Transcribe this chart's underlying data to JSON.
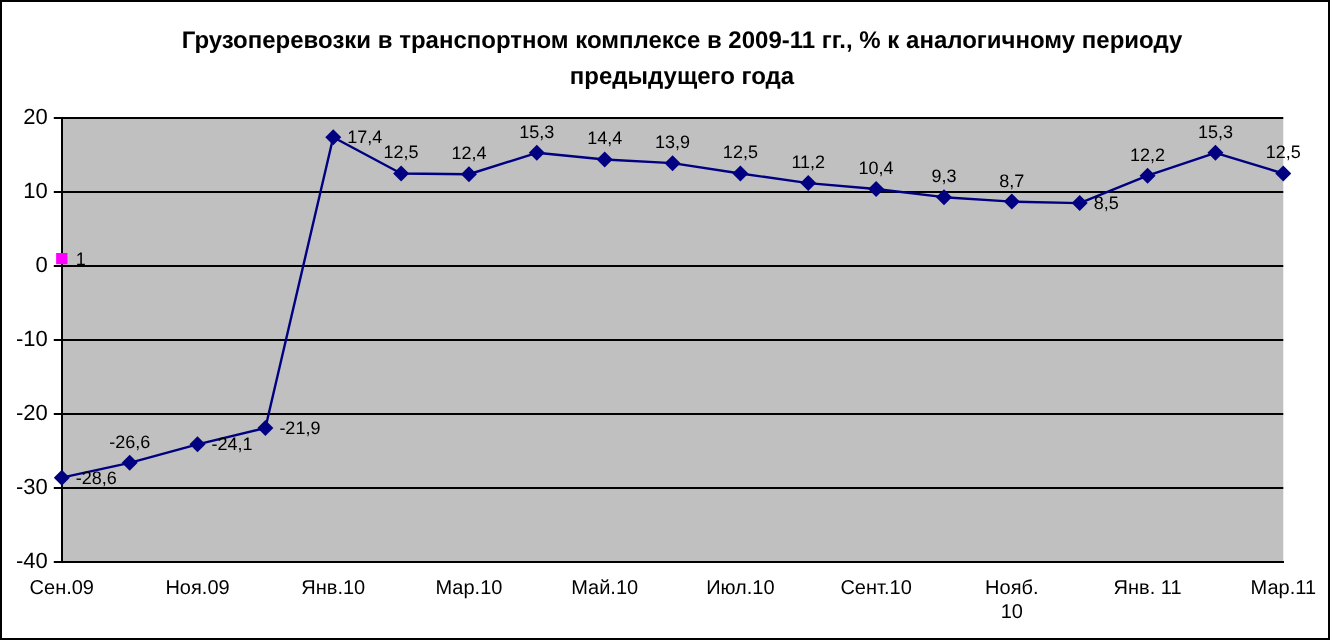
{
  "chart_data": {
    "type": "line",
    "title": "Грузоперевозки в транспортном комплексе в 2009-11 гг., % к аналогичному периоду предыдущего года",
    "categories": [
      "Сен.09",
      null,
      "Ноя.09",
      null,
      "Янв.10",
      null,
      "Мар.10",
      null,
      "Май.10",
      null,
      "Июл.10",
      null,
      "Сент.10",
      null,
      "Нояб.\n10",
      null,
      "Янв. 11",
      null,
      "Мар.11"
    ],
    "series": [
      {
        "type": "line",
        "color": "#000080",
        "marker": "diamond",
        "values": [
          -28.6,
          -26.6,
          -24.1,
          -21.9,
          17.4,
          12.5,
          12.4,
          15.3,
          14.4,
          13.9,
          12.5,
          11.2,
          10.4,
          9.3,
          8.7,
          8.5,
          12.2,
          15.3,
          12.5
        ],
        "value_labels": [
          "-28,6",
          "-26,6",
          "-24,1",
          "-21,9",
          "17,4",
          "12,5",
          "12,4",
          "15,3",
          "14,4",
          "13,9",
          "12,5",
          "11,2",
          "10,4",
          "9,3",
          "8,7",
          "8,5",
          "12,2",
          "15,3",
          "12,5"
        ]
      },
      {
        "type": "scatter",
        "color": "#ff00ff",
        "marker": "square",
        "values": [
          1,
          null,
          null,
          null,
          null,
          null,
          null,
          null,
          null,
          null,
          null,
          null,
          null,
          null,
          null,
          null,
          null,
          null,
          null
        ],
        "value_labels": [
          "1",
          null,
          null,
          null,
          null,
          null,
          null,
          null,
          null,
          null,
          null,
          null,
          null,
          null,
          null,
          null,
          null,
          null,
          null
        ]
      }
    ],
    "ylim": [
      -40,
      20
    ],
    "yticks": [
      -40,
      -30,
      -20,
      -10,
      0,
      10,
      20
    ],
    "grid": "y",
    "legend": false
  }
}
